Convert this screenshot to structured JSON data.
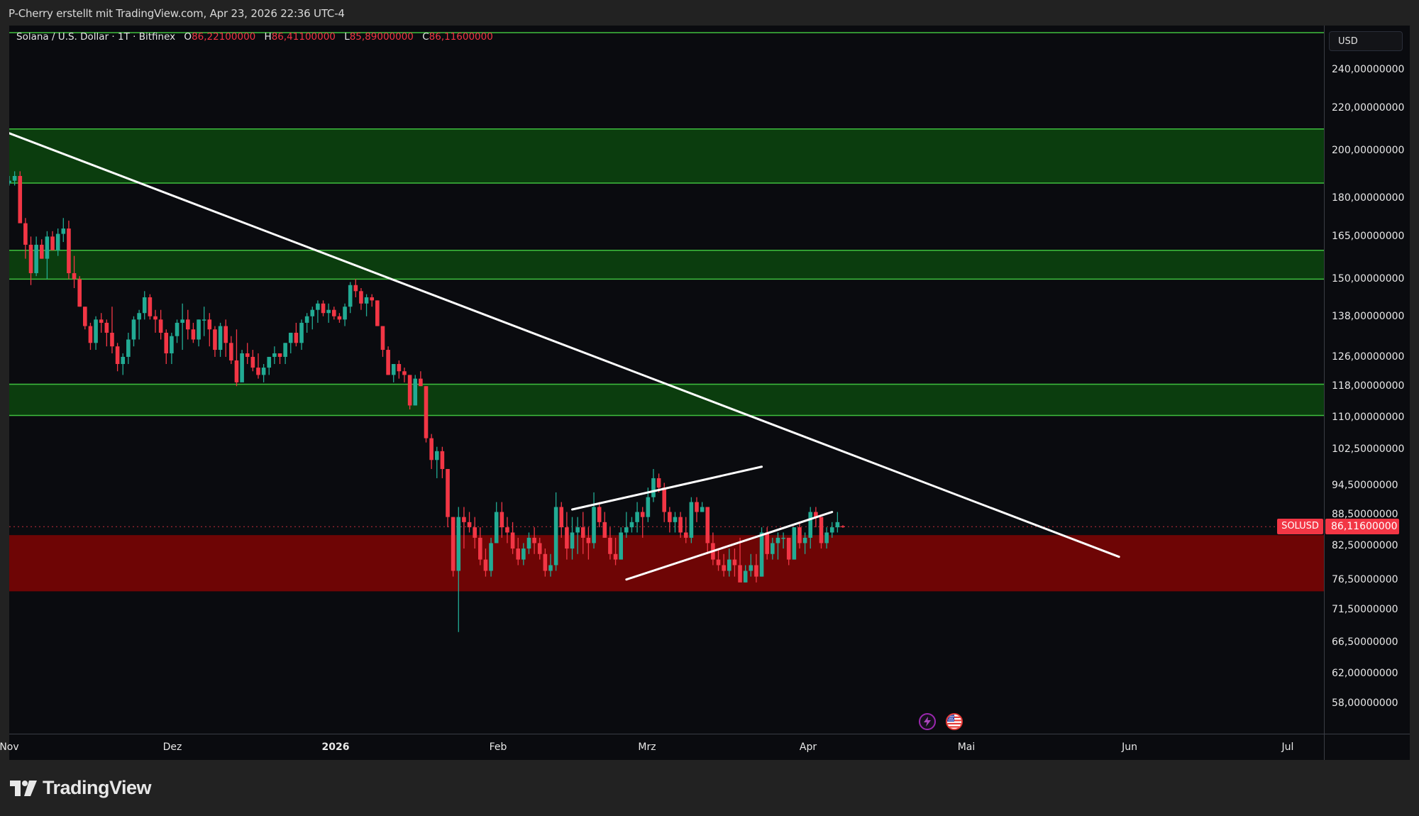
{
  "caption": "P-Cherry erstellt mit TradingView.com, Apr 23, 2026 22:36 UTC-4",
  "legend": {
    "symbol_title": "Solana / U.S. Dollar · 1T · Bitfinex",
    "open_label": "O",
    "open": "86,22100000",
    "high_label": "H",
    "high": "86,41100000",
    "low_label": "L",
    "low": "85,89000000",
    "close_label": "C",
    "close": "86,11600000"
  },
  "price_axis": {
    "currency": "USD",
    "ticks": [
      "240,00000000",
      "220,00000000",
      "200,00000000",
      "180,00000000",
      "165,00000000",
      "150,00000000",
      "138,00000000",
      "126,00000000",
      "118,00000000",
      "110,00000000",
      "102,50000000",
      "94,50000000",
      "88,50000000",
      "82,50000000",
      "76,50000000",
      "71,50000000",
      "66,50000000",
      "62,00000000",
      "58,00000000"
    ],
    "current_price": "86,11600000",
    "symbol_tag": "SOLUSD"
  },
  "time_axis": {
    "labels": [
      "Nov",
      "Dez",
      "2026",
      "Feb",
      "Mrz",
      "Apr",
      "Mai",
      "Jun",
      "Jul"
    ]
  },
  "events": [
    {
      "name": "lightning-event-icon"
    },
    {
      "name": "us-flag-event-icon"
    }
  ],
  "branding": {
    "logo_text": "TradingView"
  },
  "colors": {
    "up": "#22ab94",
    "down": "#f23645",
    "support_zone": "#0b3d0e",
    "support_edge": "#3fbf3f",
    "demand_zone": "#6e0505",
    "trendline": "#ffffff",
    "price_line": "#f23645"
  },
  "chart_data": {
    "type": "candlestick",
    "title": "Solana / U.S. Dollar · 1T · Bitfinex",
    "ylabel": "USD",
    "yscale": "log",
    "ylim": [
      55,
      255
    ],
    "xlim_dates": [
      "2025-10-31",
      "2026-07-10"
    ],
    "xticks": [
      "Nov",
      "Dez",
      "2026",
      "Feb",
      "Mrz",
      "Apr",
      "Mai",
      "Jun",
      "Jul"
    ],
    "last": {
      "open": 86.221,
      "high": 86.411,
      "low": 85.89,
      "close": 86.116
    },
    "zones": [
      {
        "type": "resistance",
        "color": "green",
        "low": 186,
        "high": 210
      },
      {
        "type": "resistance",
        "color": "green",
        "low": 150,
        "high": 160
      },
      {
        "type": "support",
        "color": "green",
        "low": 110.5,
        "high": 118.5
      },
      {
        "type": "demand",
        "color": "red",
        "low": 74.5,
        "high": 84.5
      }
    ],
    "top_line": 255,
    "trendlines": [
      {
        "name": "descending-trendline",
        "from": [
          "2025-10-31",
          208
        ],
        "to": [
          "2026-05-24",
          80.5
        ]
      },
      {
        "name": "channel-upper",
        "from": [
          "2026-02-12",
          89.5
        ],
        "to": [
          "2026-03-19",
          98.5
        ]
      },
      {
        "name": "channel-lower",
        "from": [
          "2026-02-22",
          76.5
        ],
        "to": [
          "2026-04-01",
          89.0
        ]
      }
    ],
    "candles_start": "2025-10-30",
    "ohlc": [
      [
        187,
        190,
        184,
        186
      ],
      [
        186,
        189,
        185,
        187
      ],
      [
        187,
        191,
        185,
        189
      ],
      [
        189,
        191,
        172,
        170
      ],
      [
        170,
        172,
        157,
        162
      ],
      [
        162,
        165,
        148,
        152
      ],
      [
        152,
        165,
        151,
        162
      ],
      [
        162,
        164,
        157,
        157
      ],
      [
        157,
        167,
        150,
        165
      ],
      [
        165,
        167,
        160,
        160
      ],
      [
        160,
        168,
        158,
        166
      ],
      [
        166,
        172,
        163,
        168
      ],
      [
        168,
        171,
        150,
        152
      ],
      [
        152,
        158,
        147,
        150
      ],
      [
        150,
        151,
        141,
        141
      ],
      [
        141,
        141,
        134,
        135
      ],
      [
        135,
        136,
        128,
        130
      ],
      [
        130,
        138,
        128,
        137
      ],
      [
        137,
        139,
        133,
        136
      ],
      [
        136,
        137,
        129,
        133
      ],
      [
        133,
        141,
        127,
        129
      ],
      [
        129,
        130,
        122,
        124
      ],
      [
        124,
        127,
        121,
        126
      ],
      [
        126,
        133,
        124,
        131
      ],
      [
        131,
        138,
        129,
        137
      ],
      [
        137,
        140,
        131,
        139
      ],
      [
        139,
        146,
        137,
        144
      ],
      [
        144,
        145,
        137,
        138
      ],
      [
        138,
        140,
        133,
        137
      ],
      [
        137,
        140,
        131,
        133
      ],
      [
        133,
        134,
        124,
        127
      ],
      [
        127,
        133,
        124,
        132
      ],
      [
        132,
        137,
        130,
        136
      ],
      [
        136,
        142,
        128,
        137
      ],
      [
        137,
        140,
        131,
        134
      ],
      [
        134,
        136,
        130,
        131
      ],
      [
        131,
        137,
        129,
        137
      ],
      [
        137,
        141,
        132,
        137
      ],
      [
        137,
        139,
        129,
        134
      ],
      [
        134,
        135,
        126,
        128
      ],
      [
        128,
        136,
        126,
        135
      ],
      [
        135,
        137,
        126,
        130
      ],
      [
        130,
        132,
        124,
        125
      ],
      [
        125,
        134,
        118,
        119
      ],
      [
        119,
        128,
        121,
        127
      ],
      [
        127,
        130,
        124,
        126
      ],
      [
        126,
        128,
        122,
        123
      ],
      [
        123,
        127,
        120,
        121
      ],
      [
        121,
        124,
        119,
        123
      ],
      [
        123,
        126,
        121,
        126
      ],
      [
        126,
        129,
        124,
        127
      ],
      [
        127,
        127,
        124,
        126
      ],
      [
        126,
        130,
        124,
        130
      ],
      [
        130,
        133,
        127,
        133
      ],
      [
        133,
        136,
        129,
        130
      ],
      [
        130,
        137,
        128,
        136
      ],
      [
        136,
        139,
        133,
        138
      ],
      [
        138,
        141,
        134,
        140
      ],
      [
        140,
        143,
        136,
        142
      ],
      [
        142,
        143,
        138,
        139
      ],
      [
        139,
        142,
        136,
        140
      ],
      [
        140,
        141,
        137,
        138
      ],
      [
        138,
        139,
        136,
        137
      ],
      [
        137,
        142,
        135,
        141
      ],
      [
        141,
        149,
        139,
        148
      ],
      [
        148,
        150,
        144,
        146
      ],
      [
        146,
        147,
        140,
        142
      ],
      [
        142,
        145,
        138,
        144
      ],
      [
        144,
        145,
        141,
        143
      ],
      [
        143,
        143,
        135,
        135
      ],
      [
        135,
        135,
        126,
        128
      ],
      [
        128,
        129,
        121,
        121
      ],
      [
        121,
        124,
        119,
        124
      ],
      [
        124,
        125,
        120,
        122
      ],
      [
        122,
        123,
        119,
        121
      ],
      [
        121,
        121,
        112,
        113
      ],
      [
        113,
        121,
        113,
        120
      ],
      [
        120,
        122,
        118,
        118
      ],
      [
        118,
        118,
        104,
        105
      ],
      [
        105,
        106,
        98,
        100
      ],
      [
        100,
        103,
        96,
        102
      ],
      [
        102,
        103,
        96,
        98
      ],
      [
        98,
        98,
        86,
        88
      ],
      [
        88,
        88,
        77,
        78
      ],
      [
        78,
        90,
        68,
        88
      ],
      [
        88,
        90,
        82,
        87
      ],
      [
        87,
        89,
        85,
        86
      ],
      [
        86,
        88,
        82,
        84
      ],
      [
        84,
        86,
        79,
        80
      ],
      [
        80,
        82,
        77,
        78
      ],
      [
        78,
        84,
        77,
        83
      ],
      [
        83,
        91,
        83,
        89
      ],
      [
        89,
        91,
        84,
        86
      ],
      [
        86,
        88,
        83,
        85
      ],
      [
        85,
        87,
        81,
        82
      ],
      [
        82,
        84,
        79,
        80
      ],
      [
        80,
        83,
        79,
        82
      ],
      [
        82,
        85,
        81,
        84
      ],
      [
        84,
        86,
        81,
        83
      ],
      [
        83,
        84,
        80,
        81
      ],
      [
        81,
        82,
        77,
        78
      ],
      [
        78,
        81,
        77,
        79
      ],
      [
        79,
        93,
        78,
        90
      ],
      [
        90,
        91,
        84,
        86
      ],
      [
        86,
        89,
        80,
        82
      ],
      [
        82,
        88,
        80,
        85
      ],
      [
        85,
        88,
        81,
        86
      ],
      [
        86,
        89,
        81,
        84
      ],
      [
        84,
        86,
        80,
        83
      ],
      [
        83,
        93,
        82,
        90
      ],
      [
        90,
        91,
        86,
        87
      ],
      [
        87,
        89,
        84,
        84
      ],
      [
        84,
        86,
        80,
        81
      ],
      [
        81,
        84,
        79,
        80
      ],
      [
        80,
        86,
        80,
        85
      ],
      [
        85,
        89,
        84,
        86
      ],
      [
        86,
        88,
        85,
        87
      ],
      [
        87,
        91,
        85,
        89
      ],
      [
        89,
        90,
        84,
        88
      ],
      [
        88,
        94,
        87,
        92
      ],
      [
        92,
        98,
        91,
        96
      ],
      [
        96,
        97,
        93,
        94
      ],
      [
        94,
        95,
        87,
        89
      ],
      [
        89,
        90,
        85,
        87
      ],
      [
        87,
        89,
        85,
        88
      ],
      [
        88,
        89,
        84,
        85
      ],
      [
        85,
        88,
        83,
        84
      ],
      [
        84,
        92,
        83,
        91
      ],
      [
        91,
        92,
        87,
        89
      ],
      [
        89,
        91,
        89,
        90
      ],
      [
        90,
        90,
        81,
        83
      ],
      [
        83,
        85,
        79,
        80
      ],
      [
        80,
        82,
        78,
        79
      ],
      [
        79,
        81,
        77,
        78
      ],
      [
        78,
        82,
        77,
        80
      ],
      [
        80,
        82,
        77,
        79
      ],
      [
        79,
        84,
        78,
        76
      ],
      [
        76,
        79,
        76,
        78
      ],
      [
        78,
        81,
        77,
        79
      ],
      [
        79,
        81,
        76,
        77
      ],
      [
        77,
        86,
        77,
        85
      ],
      [
        85,
        86,
        80,
        81
      ],
      [
        81,
        84,
        80,
        83
      ],
      [
        83,
        85,
        80,
        84
      ],
      [
        84,
        85,
        82,
        84
      ],
      [
        84,
        84,
        79,
        80
      ],
      [
        80,
        86,
        80,
        86
      ],
      [
        86,
        87,
        82,
        83
      ],
      [
        83,
        85,
        81,
        84
      ],
      [
        84,
        90,
        82,
        89
      ],
      [
        89,
        90,
        86,
        88
      ],
      [
        88,
        88,
        82,
        83
      ],
      [
        83,
        86,
        82,
        85
      ],
      [
        85,
        87,
        84,
        86
      ],
      [
        86,
        89,
        85,
        87
      ],
      [
        86.221,
        86.411,
        85.89,
        86.116
      ]
    ]
  }
}
